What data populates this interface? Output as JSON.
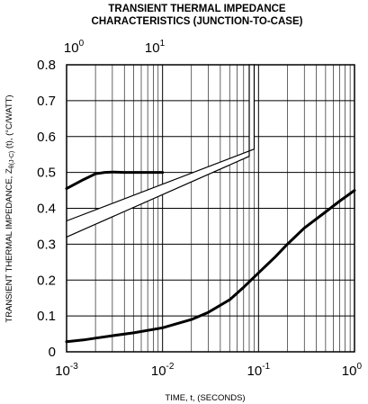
{
  "chart_data": {
    "type": "line",
    "title_line1": "TRANSIENT THERMAL IMPEDANCE",
    "title_line2": "CHARACTERISTICS (JUNCTION-TO-CASE)",
    "xlabel": "TIME, t, (SECONDS)",
    "ylabel_parts": {
      "main": "TRANSIENT THERMAL IMPEDANCE, Z",
      "sub": "θ(J-C)",
      "rest": " (t), (°C/WATT)"
    },
    "x_scale": "log",
    "xlim": [
      0.001,
      1
    ],
    "ylim": [
      0,
      0.8
    ],
    "grid": true,
    "x_ticks": [
      {
        "value": 0.001,
        "base": "10",
        "exp": "-3"
      },
      {
        "value": 0.01,
        "base": "10",
        "exp": "-2"
      },
      {
        "value": 0.1,
        "base": "10",
        "exp": "-1"
      },
      {
        "value": 1,
        "base": "10",
        "exp": "0"
      }
    ],
    "inset_top_ticks": [
      {
        "base": "10",
        "exp": "0"
      },
      {
        "base": "10",
        "exp": "1"
      }
    ],
    "y_ticks": [
      {
        "value": 0,
        "label": "0"
      },
      {
        "value": 0.1,
        "label": "0.1"
      },
      {
        "value": 0.2,
        "label": "0.2"
      },
      {
        "value": 0.3,
        "label": "0.3"
      },
      {
        "value": 0.4,
        "label": "0.4"
      },
      {
        "value": 0.5,
        "label": "0.5"
      },
      {
        "value": 0.6,
        "label": "0.6"
      },
      {
        "value": 0.7,
        "label": "0.7"
      },
      {
        "value": 0.8,
        "label": "0.8"
      }
    ],
    "series": [
      {
        "x": [
          0.001,
          0.0015,
          0.002,
          0.003,
          0.005,
          0.01,
          0.02,
          0.03,
          0.05,
          0.07,
          0.1,
          0.15,
          0.2,
          0.3,
          0.5,
          0.7,
          1.0
        ],
        "y": [
          0.028,
          0.033,
          0.038,
          0.045,
          0.053,
          0.067,
          0.09,
          0.11,
          0.145,
          0.18,
          0.22,
          0.265,
          0.3,
          0.345,
          0.39,
          0.42,
          0.45
        ]
      },
      {
        "note_axis": "inset",
        "x": [
          0.001,
          0.0015,
          0.002,
          0.0025,
          0.003,
          0.004,
          0.006,
          0.01
        ],
        "y": [
          0.455,
          0.48,
          0.496,
          0.5,
          0.501,
          0.5,
          0.5,
          0.5
        ]
      }
    ]
  }
}
